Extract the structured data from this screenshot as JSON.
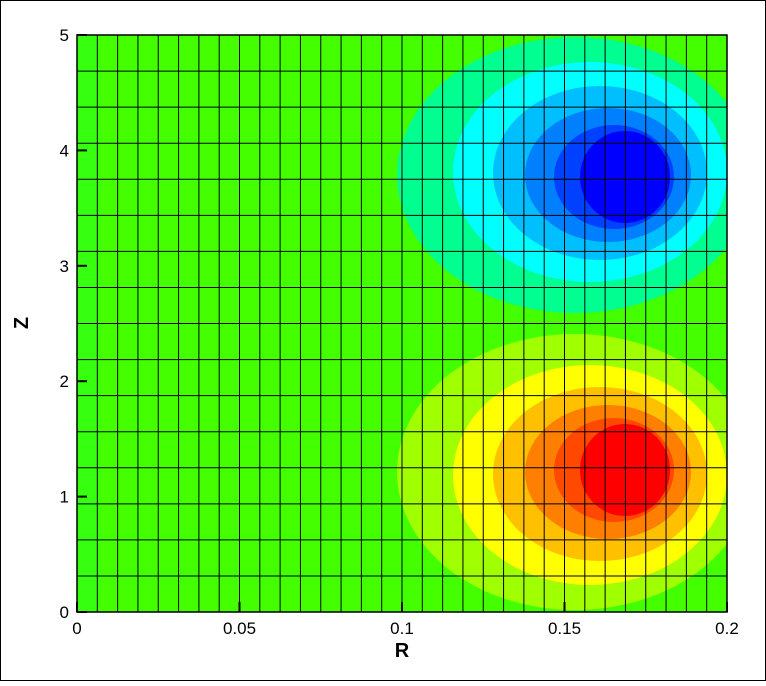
{
  "chart_data": {
    "type": "contour",
    "xlabel": "R",
    "ylabel": "Z",
    "xlim": [
      0,
      0.2
    ],
    "xticks": [
      0,
      0.05,
      0.1,
      0.15,
      0.2
    ],
    "ylim": [
      0,
      5
    ],
    "yticks": [
      0,
      1,
      2,
      3,
      4,
      5
    ],
    "grid": true
  }
}
